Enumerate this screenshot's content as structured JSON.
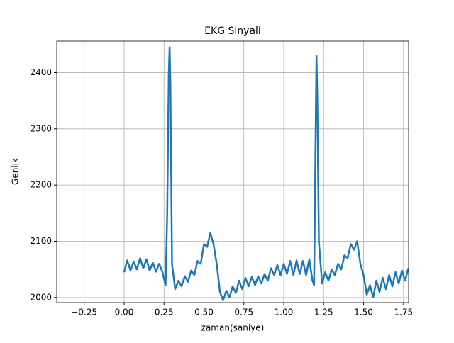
{
  "chart_data": {
    "type": "line",
    "title": "EKG Sinyali",
    "x_label": "zaman(saniye)",
    "y_label": "Genlik",
    "x": [
      0,
      0.02,
      0.04,
      0.06,
      0.08,
      0.1,
      0.12,
      0.14,
      0.16,
      0.18,
      0.2,
      0.22,
      0.24,
      0.26,
      0.27,
      0.28,
      0.285,
      0.29,
      0.3,
      0.32,
      0.34,
      0.36,
      0.38,
      0.4,
      0.42,
      0.44,
      0.46,
      0.48,
      0.5,
      0.52,
      0.54,
      0.56,
      0.58,
      0.6,
      0.62,
      0.64,
      0.66,
      0.68,
      0.7,
      0.72,
      0.74,
      0.76,
      0.78,
      0.8,
      0.82,
      0.84,
      0.86,
      0.88,
      0.9,
      0.92,
      0.94,
      0.96,
      0.98,
      1.0,
      1.02,
      1.04,
      1.06,
      1.08,
      1.1,
      1.12,
      1.14,
      1.16,
      1.18,
      1.19,
      1.2,
      1.205,
      1.21,
      1.22,
      1.24,
      1.26,
      1.28,
      1.3,
      1.32,
      1.34,
      1.36,
      1.38,
      1.4,
      1.42,
      1.44,
      1.46,
      1.48,
      1.5,
      1.52,
      1.54,
      1.56,
      1.58,
      1.6,
      1.62,
      1.64,
      1.66,
      1.68,
      1.7,
      1.72,
      1.74,
      1.76,
      1.78
    ],
    "series": [
      {
        "color": "#1f77b4",
        "values": [
          2045,
          2066,
          2048,
          2064,
          2050,
          2070,
          2052,
          2068,
          2048,
          2062,
          2046,
          2060,
          2045,
          2022,
          2150,
          2400,
          2445,
          2380,
          2060,
          2015,
          2030,
          2020,
          2038,
          2028,
          2048,
          2040,
          2065,
          2060,
          2095,
          2090,
          2115,
          2095,
          2060,
          2010,
          1995,
          2012,
          2000,
          2020,
          2008,
          2030,
          2015,
          2035,
          2020,
          2037,
          2022,
          2038,
          2025,
          2042,
          2030,
          2052,
          2040,
          2058,
          2040,
          2060,
          2042,
          2065,
          2040,
          2066,
          2042,
          2065,
          2040,
          2068,
          2030,
          2022,
          2300,
          2430,
          2360,
          2100,
          2025,
          2045,
          2030,
          2050,
          2040,
          2060,
          2050,
          2075,
          2070,
          2095,
          2085,
          2100,
          2060,
          2040,
          2005,
          2022,
          2000,
          2030,
          2010,
          2035,
          2015,
          2040,
          2020,
          2045,
          2025,
          2048,
          2030,
          2052
        ]
      }
    ],
    "xlim": [
      -0.422,
      1.782
    ],
    "ylim": [
      1991,
      2456
    ],
    "xticks": [
      {
        "value": -0.25,
        "label": "−0.25"
      },
      {
        "value": 0,
        "label": "0.00"
      },
      {
        "value": 0.25,
        "label": "0.25"
      },
      {
        "value": 0.5,
        "label": "0.50"
      },
      {
        "value": 0.75,
        "label": "0.75"
      },
      {
        "value": 1,
        "label": "1.00"
      },
      {
        "value": 1.25,
        "label": "1.25"
      },
      {
        "value": 1.5,
        "label": "1.50"
      },
      {
        "value": 1.75,
        "label": "1.75"
      }
    ],
    "yticks": [
      2000,
      2100,
      2200,
      2300,
      2400
    ],
    "grid": true
  }
}
